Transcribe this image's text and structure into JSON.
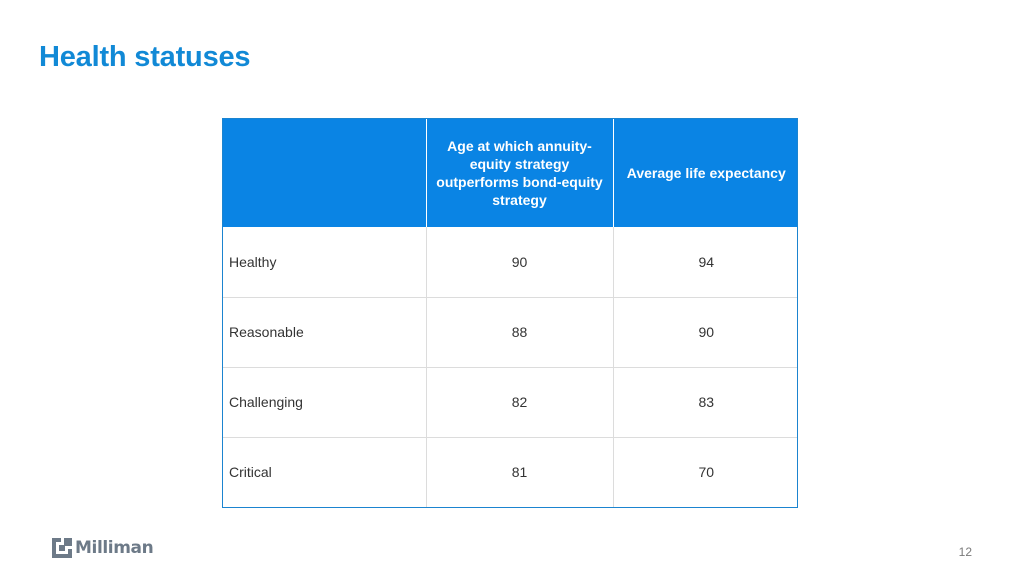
{
  "slide": {
    "title": "Health statuses",
    "page_number": "12"
  },
  "table": {
    "headers": [
      "",
      "Age at which annuity-equity strategy outperforms bond-equity strategy",
      "Average life expectancy"
    ],
    "rows": [
      [
        "Healthy",
        "90",
        "94"
      ],
      [
        "Reasonable",
        "88",
        "90"
      ],
      [
        "Challenging",
        "82",
        "83"
      ],
      [
        "Critical",
        "81",
        "70"
      ]
    ]
  },
  "footer": {
    "logo_text": "Milliman",
    "logo_icon": "milliman-logo-icon"
  },
  "colors": {
    "title": "#1189d6",
    "header_bg": "#0a84e4",
    "logo": "#6d7a88"
  }
}
